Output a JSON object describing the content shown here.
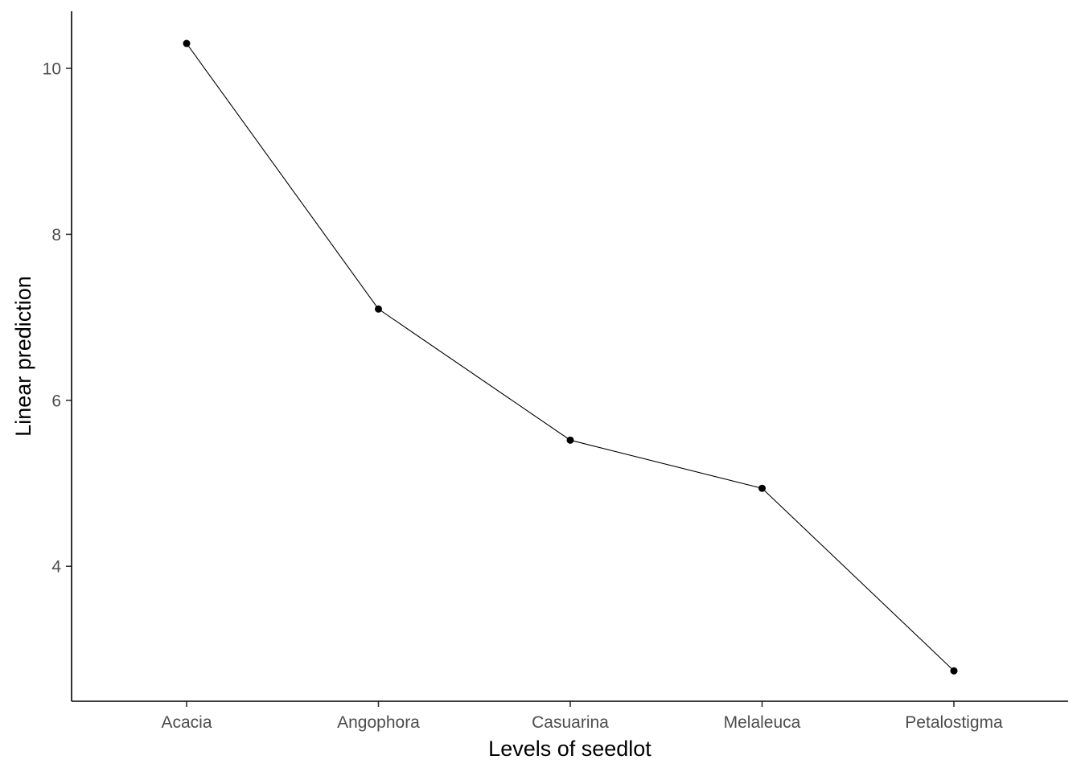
{
  "chart_data": {
    "type": "line",
    "xlabel": "Levels of seedlot",
    "ylabel": "Linear prediction",
    "categories": [
      "Acacia",
      "Angophora",
      "Casuarina",
      "Melaleuca",
      "Petalostigma"
    ],
    "values": [
      10.3,
      7.1,
      5.52,
      4.94,
      2.74
    ],
    "ylim": [
      2.36,
      10.68
    ],
    "yticks": [
      4,
      6,
      8,
      10
    ],
    "grid": false,
    "legend": "none",
    "colors": {
      "line": "#000000",
      "point": "#000000",
      "tick_text": "#4d4d4d"
    }
  }
}
